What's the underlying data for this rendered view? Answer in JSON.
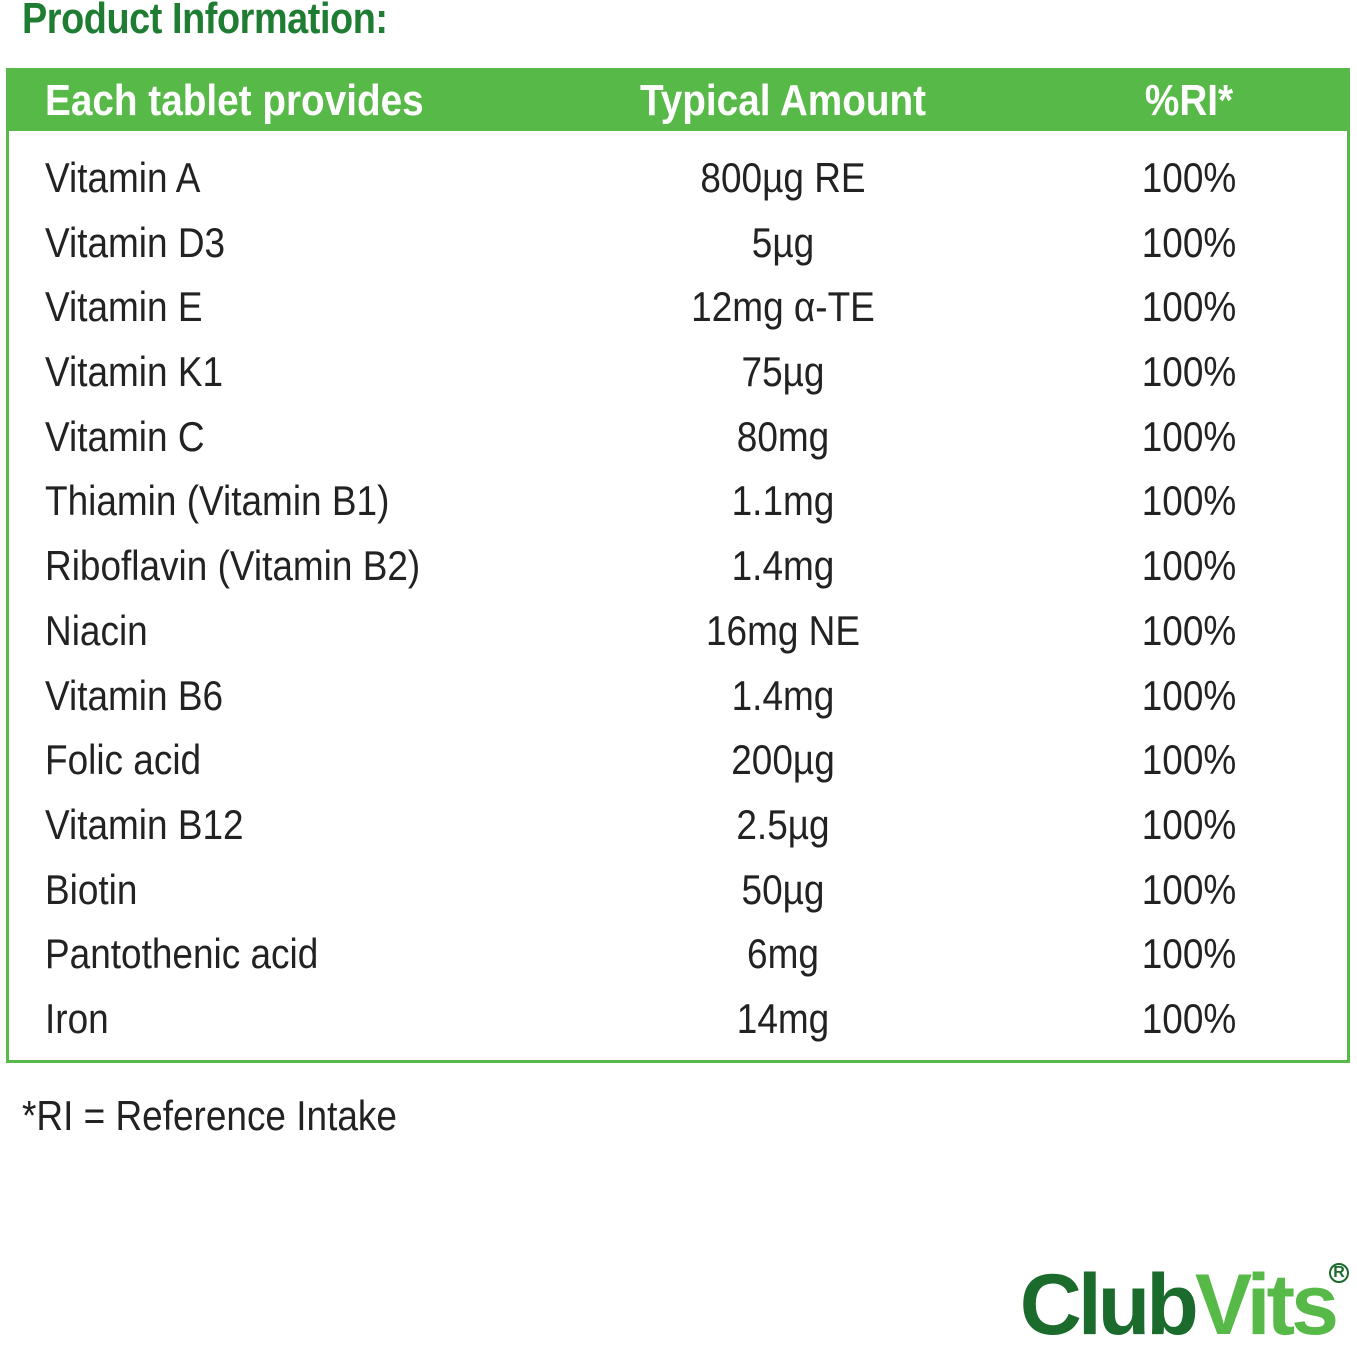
{
  "heading": "Product Information:",
  "table": {
    "headers": [
      "Each tablet provides",
      "Typical Amount",
      "%RI*"
    ],
    "rows": [
      [
        "Vitamin A",
        "800µg RE",
        "100%"
      ],
      [
        "Vitamin D3",
        "5µg",
        "100%"
      ],
      [
        "Vitamin E",
        "12mg α-TE",
        "100%"
      ],
      [
        "Vitamin K1",
        "75µg",
        "100%"
      ],
      [
        "Vitamin C",
        "80mg",
        "100%"
      ],
      [
        "Thiamin (Vitamin B1)",
        "1.1mg",
        "100%"
      ],
      [
        "Riboflavin (Vitamin B2)",
        "1.4mg",
        "100%"
      ],
      [
        "Niacin",
        "16mg NE",
        "100%"
      ],
      [
        "Vitamin B6",
        "1.4mg",
        "100%"
      ],
      [
        "Folic acid",
        "200µg",
        "100%"
      ],
      [
        "Vitamin B12",
        "2.5µg",
        "100%"
      ],
      [
        "Biotin",
        "50µg",
        "100%"
      ],
      [
        "Pantothenic acid",
        "6mg",
        "100%"
      ],
      [
        "Iron",
        "14mg",
        "100%"
      ]
    ]
  },
  "footnote": "*RI = Reference Intake",
  "logo": {
    "part1": "Club",
    "part2": "Vits",
    "mark": "R"
  },
  "colors": {
    "heading": "#1e7d32",
    "accent": "#57b947",
    "logo_dark": "#1a6b2c"
  }
}
